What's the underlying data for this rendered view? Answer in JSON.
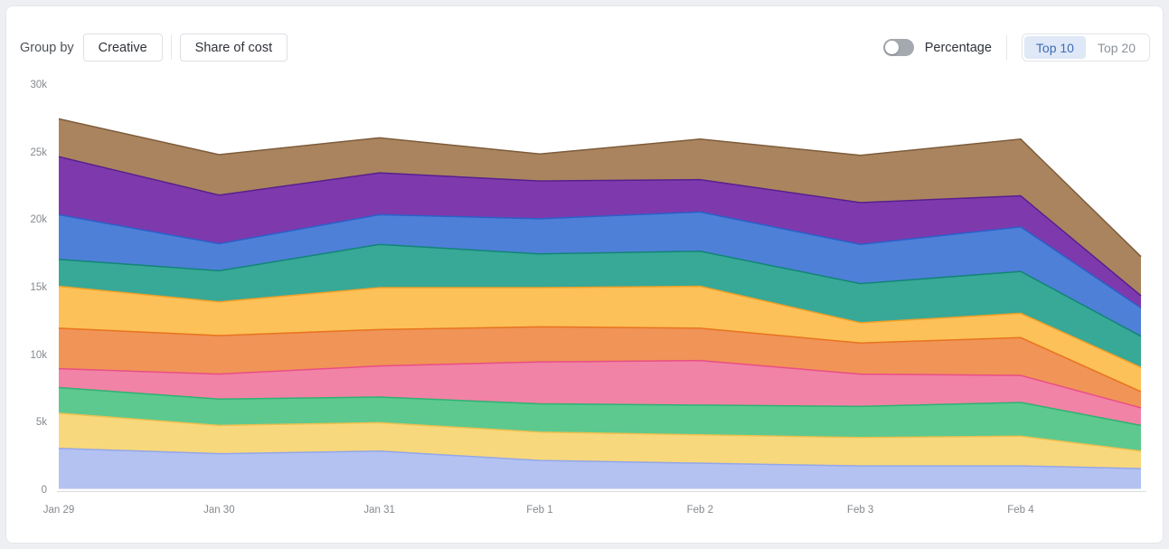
{
  "header": {
    "group_by_label": "Group by",
    "buttons": [
      {
        "label": "Creative"
      },
      {
        "label": "Share of cost"
      }
    ],
    "percentage_toggle": {
      "label": "Percentage",
      "state": "off"
    },
    "top_tabs": [
      {
        "label": "Top 10",
        "selected": true
      },
      {
        "label": "Top 20",
        "selected": false
      }
    ]
  },
  "chart_data": {
    "type": "area",
    "stacked": true,
    "grid": false,
    "legend": "none",
    "x_tick_labels": [
      "Jan 29",
      "Jan 30",
      "Jan 31",
      "Feb 1",
      "Feb 2",
      "Feb 3",
      "Feb 4"
    ],
    "y_tick_labels": [
      "0",
      "5k",
      "10k",
      "15k",
      "20k",
      "25k",
      "30k"
    ],
    "ylim": [
      0,
      30000
    ],
    "num_points": 8,
    "last_point_unlabeled": true,
    "series": [
      {
        "id": "series-1",
        "color": "#b4c2f2",
        "stroke": "#93a7e8",
        "values": [
          3000,
          2600,
          2800,
          2100,
          1900,
          1700,
          1700,
          1500
        ]
      },
      {
        "id": "series-2",
        "color": "#f8d87c",
        "stroke": "#eec050",
        "values": [
          2600,
          2100,
          2100,
          2100,
          2100,
          2100,
          2200,
          1300
        ]
      },
      {
        "id": "series-3",
        "color": "#5dc98e",
        "stroke": "#2eb273",
        "values": [
          1900,
          1950,
          1900,
          2100,
          2200,
          2300,
          2500,
          1900
        ]
      },
      {
        "id": "series-4",
        "color": "#f183a6",
        "stroke": "#e94e85",
        "values": [
          1400,
          1850,
          2300,
          3100,
          3300,
          2400,
          2000,
          1300
        ]
      },
      {
        "id": "series-5",
        "color": "#f09457",
        "stroke": "#e8731f",
        "values": [
          3000,
          2850,
          2700,
          2600,
          2400,
          2300,
          2800,
          1200
        ]
      },
      {
        "id": "series-6",
        "color": "#fcc158",
        "stroke": "#f0a028",
        "values": [
          3100,
          2500,
          3100,
          2900,
          3100,
          1500,
          1800,
          1800
        ]
      },
      {
        "id": "series-7",
        "color": "#38a897",
        "stroke": "#128577",
        "values": [
          2000,
          2300,
          3200,
          2500,
          2600,
          2900,
          3100,
          2300
        ]
      },
      {
        "id": "series-8",
        "color": "#4e80d8",
        "stroke": "#2a60c8",
        "values": [
          3300,
          2000,
          2200,
          2600,
          2900,
          2900,
          3300,
          2100
        ]
      },
      {
        "id": "series-9",
        "color": "#7e3aad",
        "stroke": "#571f8e",
        "values": [
          4300,
          3600,
          3100,
          2800,
          2400,
          3100,
          2300,
          900
        ]
      },
      {
        "id": "series-10",
        "color": "#aa845f",
        "stroke": "#7d5c3b",
        "values": [
          2800,
          3000,
          2600,
          2000,
          3000,
          3500,
          4200,
          2900
        ]
      }
    ]
  }
}
